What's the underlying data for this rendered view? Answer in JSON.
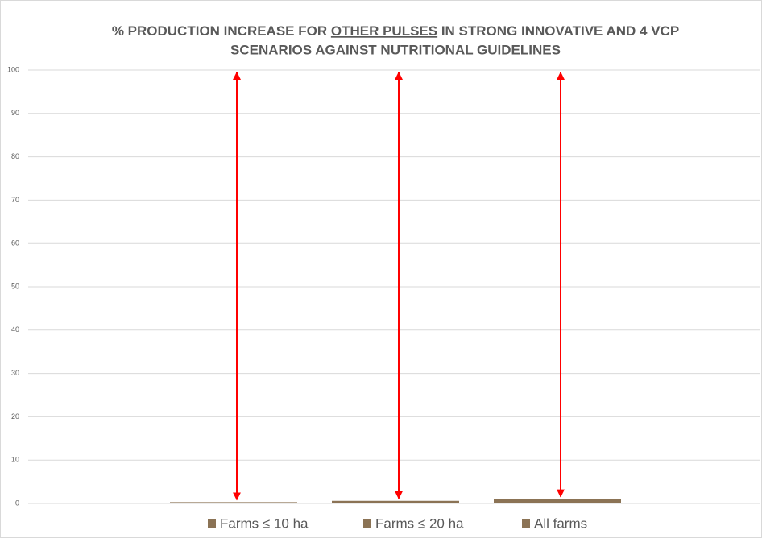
{
  "chart_data": {
    "type": "bar",
    "title_parts": [
      "% PRODUCTION INCREASE FOR ",
      "OTHER PULSES",
      " IN STRONG INNOVATIVE AND 4 VCP",
      "SCENARIOS AGAINST NUTRITIONAL GUIDELINES"
    ],
    "categories": [
      null
    ],
    "series": [
      {
        "name": "Farms ≤ 10 ha",
        "color": "#8b7355",
        "values": [
          0.3
        ]
      },
      {
        "name": "Farms ≤ 20 ha",
        "color": "#8b7355",
        "values": [
          0.6
        ]
      },
      {
        "name": "All farms",
        "color": "#8b7355",
        "values": [
          1.0
        ]
      }
    ],
    "ylim": [
      0,
      100
    ],
    "yticks": [
      0,
      10,
      20,
      30,
      40,
      50,
      60,
      70,
      80,
      90,
      100
    ],
    "grid": true,
    "legend": "bottom"
  }
}
